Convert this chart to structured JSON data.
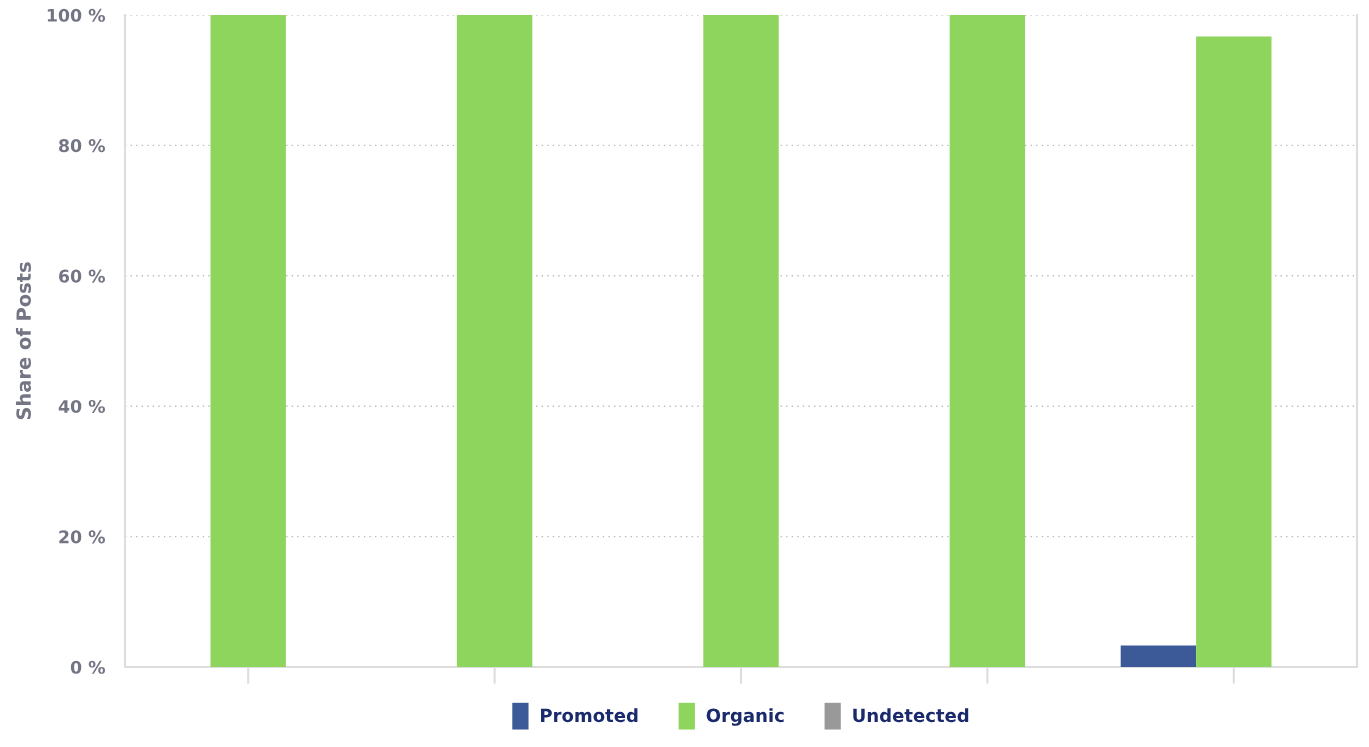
{
  "chart_data": {
    "type": "bar",
    "ylabel": "Share of Posts",
    "categories": [
      null,
      null,
      null,
      null,
      null
    ],
    "series": [
      {
        "name": "Promoted",
        "color": "#3d5a98",
        "values": [
          0,
          0,
          0,
          0,
          3.3
        ]
      },
      {
        "name": "Organic",
        "color": "#8dd55c",
        "values": [
          100,
          100,
          100,
          100,
          96.7
        ]
      },
      {
        "name": "Undetected",
        "color": "#999999",
        "values": [
          0,
          0,
          0,
          0,
          0
        ]
      }
    ],
    "ylim": [
      0,
      100
    ],
    "yticks": [
      {
        "value": 0,
        "label": "0 %"
      },
      {
        "value": 20,
        "label": "20 %"
      },
      {
        "value": 40,
        "label": "40 %"
      },
      {
        "value": 60,
        "label": "60 %"
      },
      {
        "value": 80,
        "label": "80 %"
      },
      {
        "value": 100,
        "label": "100 %"
      }
    ],
    "grid": "y",
    "legend": "bottom"
  }
}
